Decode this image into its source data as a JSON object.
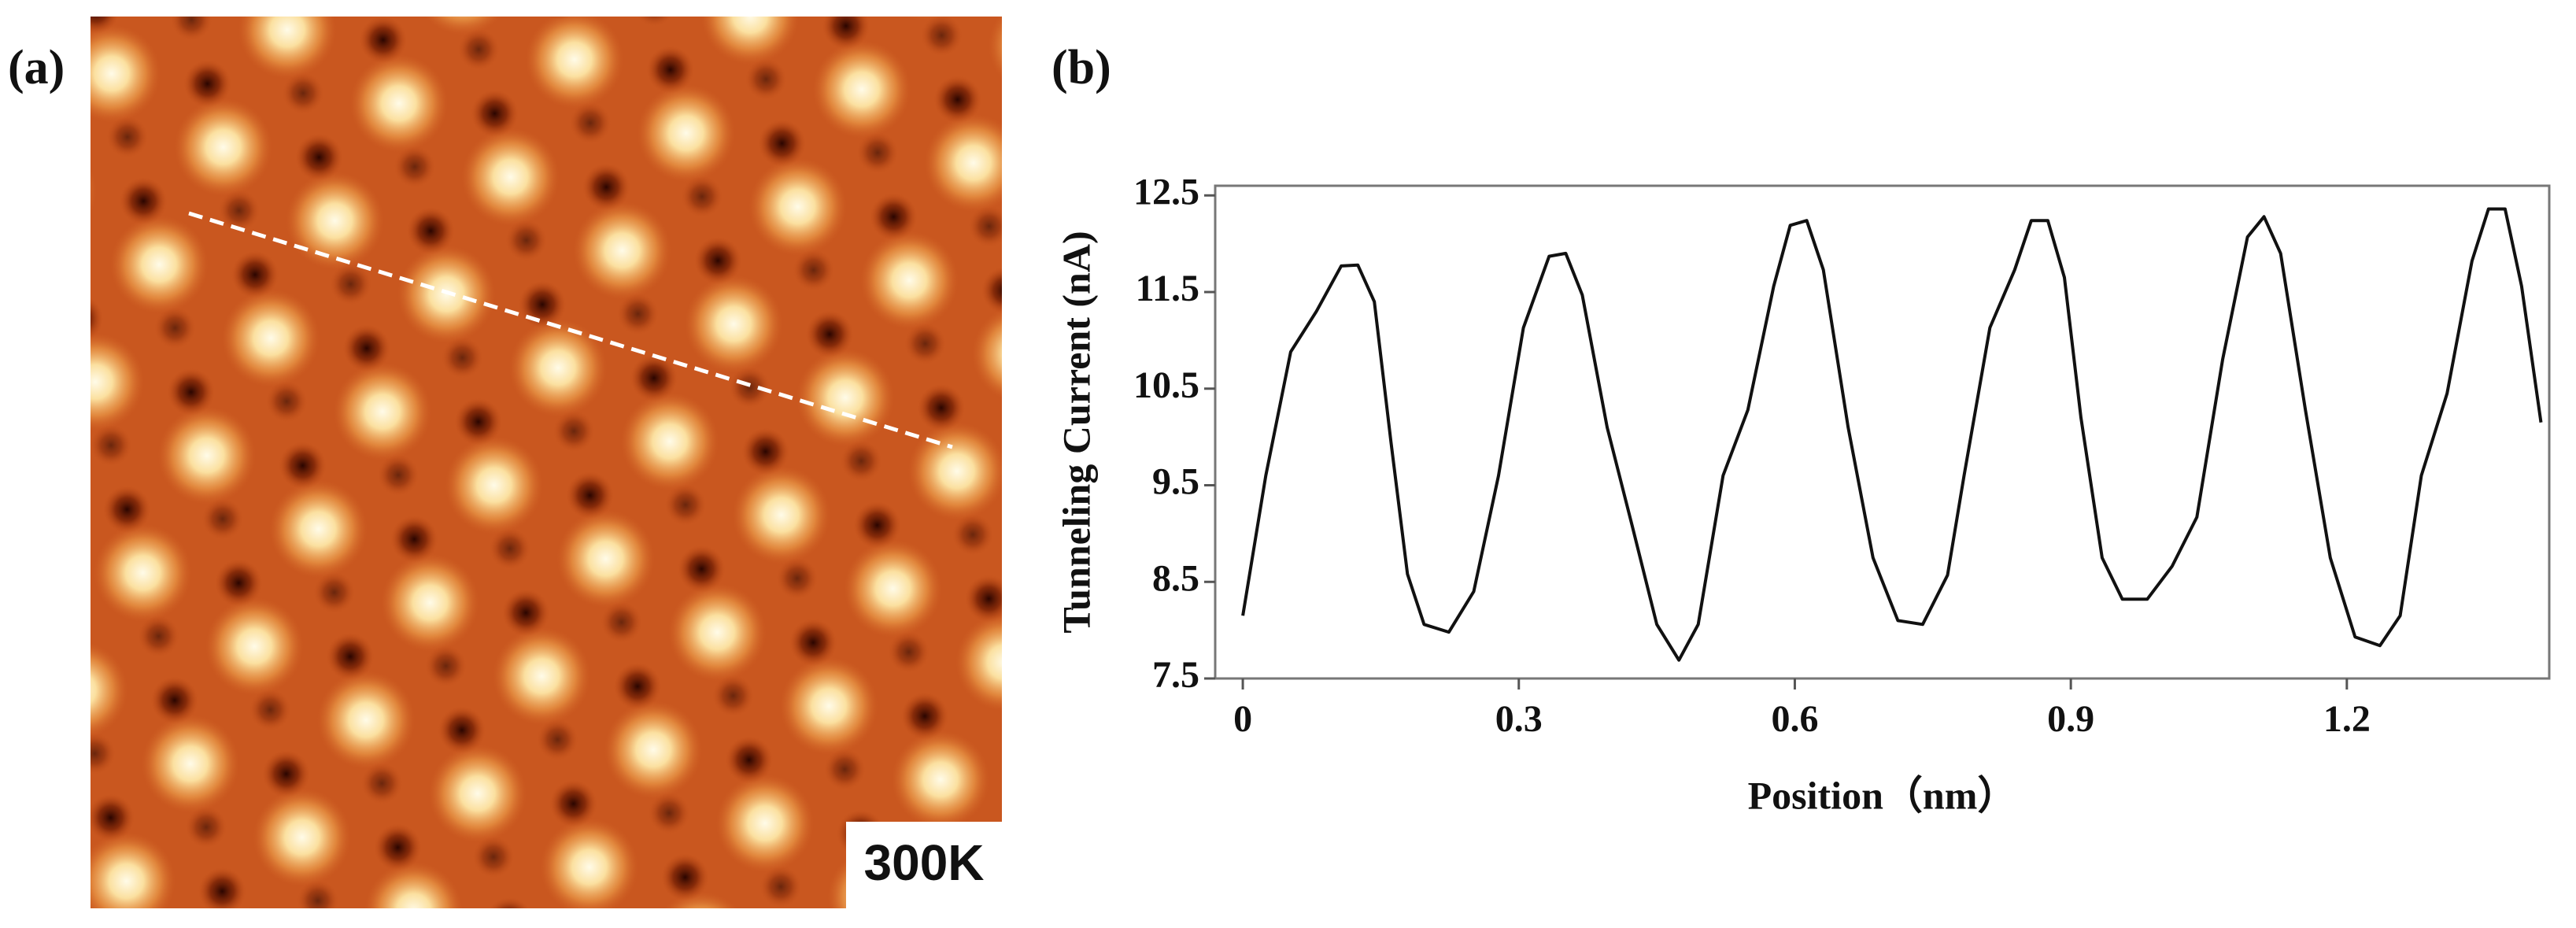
{
  "panel_labels": [
    "(a)",
    "(b)"
  ],
  "image_label": "300K",
  "chart_data": {
    "type": "line",
    "xlabel": "Position（nm）",
    "ylabel": "Tunneling Current (nA)",
    "xlim": [
      -0.03,
      1.42
    ],
    "ylim": [
      7.5,
      12.6
    ],
    "xticks": [
      0,
      0.3,
      0.6,
      0.9,
      1.2
    ],
    "yticks": [
      7.5,
      8.5,
      9.5,
      10.5,
      11.5,
      12.5
    ],
    "color": "#111111",
    "x": [
      0,
      0.025,
      0.052,
      0.08,
      0.107,
      0.125,
      0.143,
      0.161,
      0.179,
      0.197,
      0.224,
      0.251,
      0.278,
      0.305,
      0.333,
      0.351,
      0.369,
      0.396,
      0.423,
      0.45,
      0.474,
      0.495,
      0.522,
      0.549,
      0.577,
      0.595,
      0.613,
      0.631,
      0.658,
      0.685,
      0.712,
      0.739,
      0.766,
      0.784,
      0.812,
      0.839,
      0.857,
      0.875,
      0.893,
      0.911,
      0.934,
      0.956,
      0.983,
      1.01,
      1.037,
      1.065,
      1.092,
      1.11,
      1.128,
      1.155,
      1.182,
      1.209,
      1.236,
      1.258,
      1.281,
      1.309,
      1.336,
      1.354,
      1.372,
      1.39,
      1.411
    ],
    "values": [
      8.15,
      9.6,
      10.88,
      11.3,
      11.77,
      11.78,
      11.4,
      9.95,
      8.58,
      8.06,
      7.98,
      8.4,
      9.6,
      11.13,
      11.87,
      11.9,
      11.47,
      10.1,
      9.09,
      8.06,
      7.69,
      8.06,
      9.6,
      10.28,
      11.56,
      12.19,
      12.24,
      11.73,
      10.1,
      8.75,
      8.1,
      8.06,
      8.57,
      9.6,
      11.13,
      11.73,
      12.24,
      12.24,
      11.65,
      10.2,
      8.75,
      8.32,
      8.32,
      8.66,
      9.17,
      10.8,
      12.07,
      12.28,
      11.9,
      10.28,
      8.75,
      7.93,
      7.84,
      8.15,
      9.6,
      10.45,
      11.82,
      12.36,
      12.36,
      11.56,
      10.15
    ]
  }
}
